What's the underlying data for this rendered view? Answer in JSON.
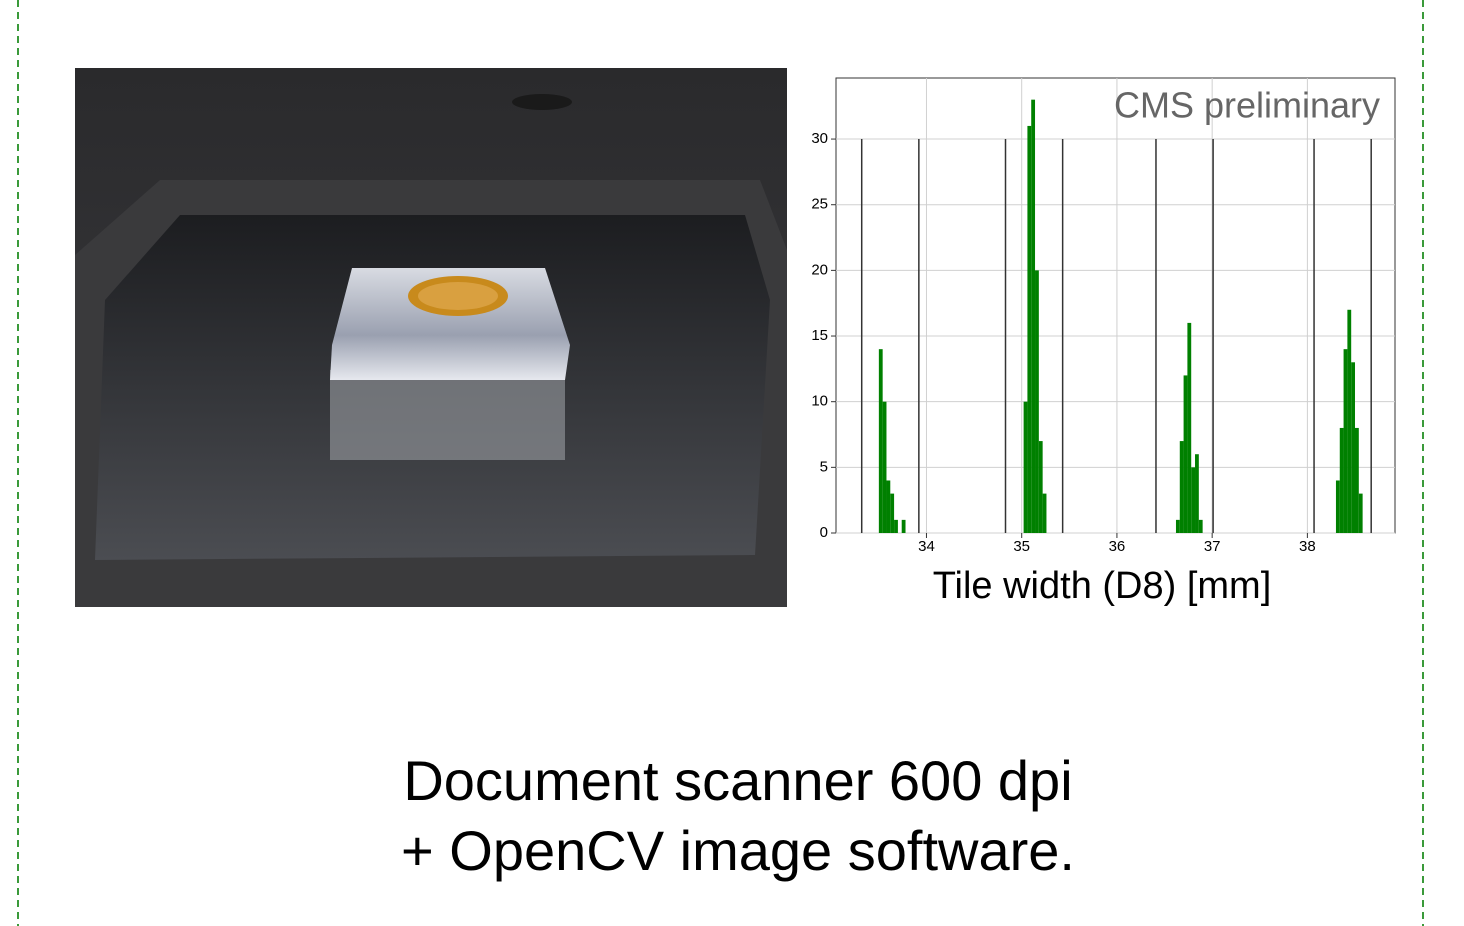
{
  "chart_data": {
    "type": "histogram",
    "annotation": "CMS preliminary",
    "x_label": "Tile width (D8) [mm]",
    "bins": [
      33.5,
      33.54,
      33.58,
      33.62,
      33.66,
      33.7,
      33.74,
      33.78,
      35.02,
      35.06,
      35.1,
      35.14,
      35.18,
      35.22,
      35.26,
      36.62,
      36.66,
      36.7,
      36.74,
      36.78,
      36.82,
      36.86,
      36.9,
      38.3,
      38.34,
      38.38,
      38.42,
      38.46,
      38.5,
      38.54,
      38.58
    ],
    "counts": [
      14,
      10,
      4,
      3,
      1,
      0,
      1,
      0,
      10,
      31,
      33,
      20,
      7,
      3,
      0,
      1,
      7,
      12,
      16,
      5,
      6,
      1,
      0,
      4,
      8,
      14,
      17,
      13,
      8,
      3
    ],
    "color": "green",
    "vlines": [
      33.32,
      33.92,
      34.83,
      35.43,
      36.41,
      37.01,
      38.07,
      38.67
    ],
    "vline_color": "#333333",
    "xlim": [
      33.05,
      38.92
    ],
    "ylim": [
      0,
      34.65
    ],
    "xticks": [
      34,
      35,
      36,
      37,
      38
    ],
    "yticks": [
      0,
      5,
      10,
      15,
      20,
      25,
      30
    ],
    "grid": true
  },
  "caption": [
    "Document scanner 600 dpi",
    "+ OpenCV image software."
  ]
}
